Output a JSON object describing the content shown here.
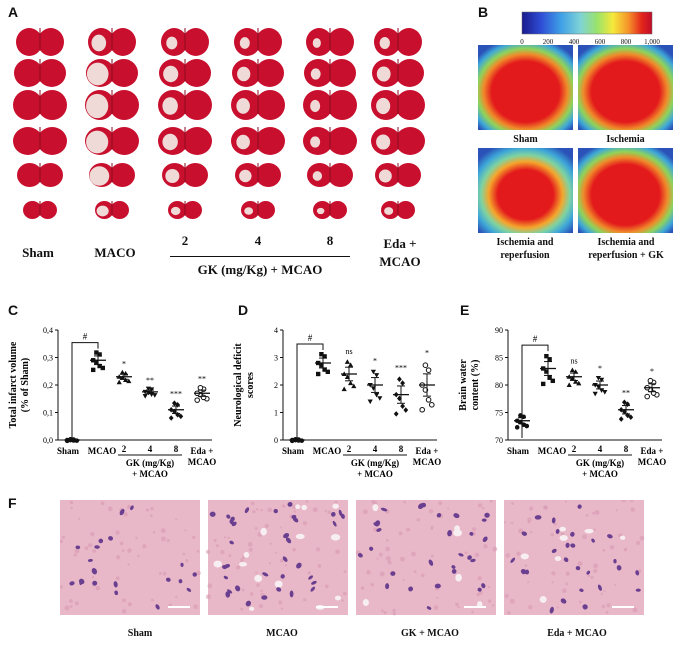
{
  "panels": {
    "a": "A",
    "b": "B",
    "c": "C",
    "d": "D",
    "e": "E",
    "f": "F"
  },
  "panel_a": {
    "groups": [
      "Sham",
      "MACO",
      "",
      "",
      "",
      "Eda +"
    ],
    "doses": [
      "2",
      "4",
      "8"
    ],
    "gk_label": "GK (mg/Kg) + MCAO",
    "eda_label_line2": "MCAO"
  },
  "panel_b": {
    "colorbar_ticks": [
      "0",
      "200",
      "400",
      "600",
      "800",
      "1,000"
    ],
    "labels": [
      "Sham",
      "Ischemia",
      "Ischemia and\nreperfusion",
      "Ischemia and\nreperfusion + GK"
    ]
  },
  "panel_f": {
    "labels": [
      "Sham",
      "MCAO",
      "GK + MCAO",
      "Eda + MCAO"
    ]
  },
  "x_axis": {
    "sham": "Sham",
    "mcao": "MCAO",
    "doses": [
      "2",
      "4",
      "8"
    ],
    "gk_line1": "GK (mg/Kg)",
    "gk_line2": "+ MCAO",
    "eda_line1": "Eda +",
    "eda_line2": "MCAO"
  },
  "colors": {
    "brain_red": "#c8102e",
    "thermo_red": "#e31a1c",
    "he_pink": "#e8b7c8"
  },
  "chart_data": [
    {
      "type": "scatter",
      "ylabel": "Total infarct volume\n(% of Sham)",
      "ylim": [
        0,
        0.4
      ],
      "yticks": [
        "0,0",
        "0,1",
        "0,2",
        "0,3",
        "0,4"
      ],
      "categories": [
        "Sham",
        "MCAO",
        "2",
        "4",
        "8",
        "Eda + MCAO"
      ],
      "values": [
        0.0,
        0.29,
        0.23,
        0.175,
        0.11,
        0.17
      ],
      "significance": [
        "",
        "#",
        "*",
        "**",
        "***",
        "**"
      ]
    },
    {
      "type": "scatter",
      "ylabel": "Neurological deficit\nscores",
      "ylim": [
        0,
        4
      ],
      "yticks": [
        "0",
        "1",
        "2",
        "3",
        "4"
      ],
      "categories": [
        "Sham",
        "MCAO",
        "2",
        "4",
        "8",
        "Eda + MCAO"
      ],
      "values": [
        0,
        2.8,
        2.4,
        2.0,
        1.65,
        2.0
      ],
      "significance": [
        "",
        "#",
        "ns",
        "*",
        "***",
        "*"
      ]
    },
    {
      "type": "scatter",
      "ylabel": "Brain water\ncontent (%)",
      "ylim": [
        70,
        90
      ],
      "yticks": [
        "70",
        "75",
        "80",
        "85",
        "90"
      ],
      "categories": [
        "Sham",
        "MCAO",
        "2",
        "4",
        "8",
        "Eda + MCAO"
      ],
      "values": [
        73.5,
        83,
        81.5,
        80,
        75.5,
        79.5
      ],
      "significance": [
        "",
        "#",
        "ns",
        "*",
        "**",
        "*"
      ]
    }
  ]
}
